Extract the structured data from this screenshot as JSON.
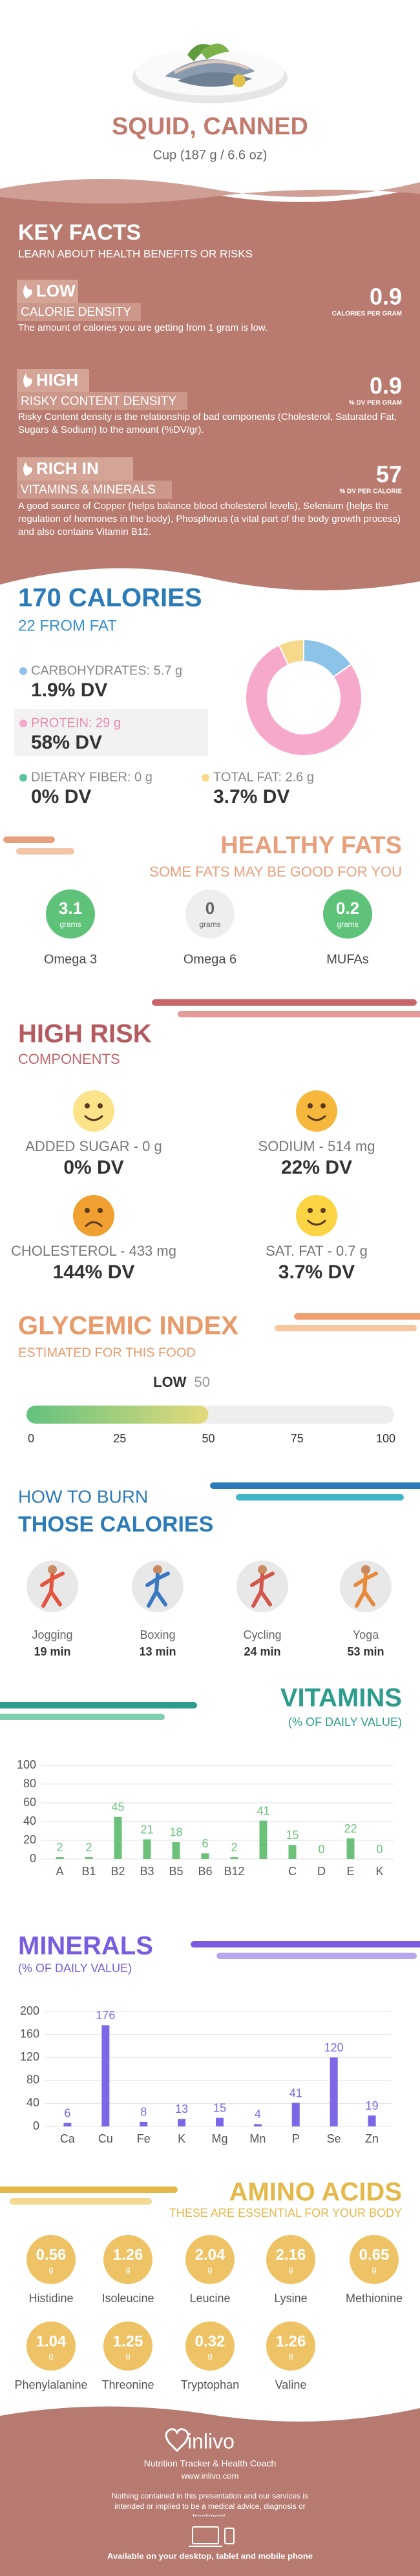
{
  "header": {
    "title": "SQUID, CANNED",
    "subtitle": "Cup (187 g / 6.6 oz)"
  },
  "key_facts": {
    "title": "KEY FACTS",
    "subtitle": "LEARN ABOUT HEALTH BENEFITS OR RISKS",
    "items": [
      {
        "level": "LOW",
        "name": "CALORIE DENSITY",
        "value": 0.9,
        "unit": "CALORIES PER GRAM",
        "description": "The amount of calories you are getting from 1 gram is low."
      },
      {
        "level": "HIGH",
        "name": "RISKY CONTENT DENSITY",
        "value": 0.9,
        "unit": "% DV PER GRAM",
        "description": "Risky Content density is the relationship of bad components (Cholesterol, Saturated Fat, Sugars & Sodium) to the amount (%DV/gr)."
      },
      {
        "level": "RICH  IN",
        "name": "VITAMINS & MINERALS",
        "value": 57,
        "unit": "% DV PER CALORIE",
        "description": "A good source of Copper (helps balance blood cholesterol levels), Selenium (helps the regulation of hormones in the body), Phosphorus (a vital part of the body growth process) and also contains Vitamin B12."
      }
    ]
  },
  "calories": {
    "title": "170 CALORIES",
    "subtitle": "22 FROM FAT",
    "nutrients": [
      {
        "label": "CARBOHYDRATES: 5.7 g",
        "value": 5.7,
        "dv": "1.9% DV",
        "color": "#8cc3e8"
      },
      {
        "label": "PROTEIN: 29 g",
        "value": 29,
        "dv": "58% DV",
        "color": "#f7a9cb"
      },
      {
        "label": "DIETARY FIBER: 0 g",
        "value": 0,
        "dv": "0% DV",
        "color": "#5cc49a"
      },
      {
        "label": "TOTAL FAT: 2.6 g",
        "value": 2.6,
        "dv": "3.7% DV",
        "color": "#f7d98b"
      }
    ]
  },
  "healthy_fats": {
    "title": "HEALTHY FATS",
    "subtitle": "SOME FATS MAY BE GOOD FOR YOU",
    "unit": "grams",
    "items": [
      {
        "name": "Omega 3",
        "value": 3.1,
        "color": "#5ec279"
      },
      {
        "name": "Omega 6",
        "value": 0,
        "color": "#eeeeee"
      },
      {
        "name": "MUFAs",
        "value": 0.2,
        "color": "#5ec279"
      }
    ]
  },
  "high_risk": {
    "title": "HIGH RISK",
    "subtitle": "COMPONENTS",
    "items": [
      {
        "label": "ADDED SUGAR - 0 g",
        "dv": "0% DV",
        "mood": "happy",
        "color": "#fbe38a"
      },
      {
        "label": "SODIUM - 514 mg",
        "dv": "22% DV",
        "mood": "happy",
        "color": "#f6b73c"
      },
      {
        "label": "CHOLESTEROL - 433 mg",
        "dv": "144% DV",
        "mood": "sad",
        "color": "#f0a030"
      },
      {
        "label": "SAT. FAT - 0.7 g",
        "dv": "3.7% DV",
        "mood": "happy",
        "color": "#fbd443"
      }
    ]
  },
  "glycemic_index": {
    "title": "GLYCEMIC INDEX",
    "subtitle": "ESTIMATED FOR THIS FOOD",
    "level": "LOW",
    "value": 50,
    "range": [
      0,
      100
    ],
    "ticks": [
      0,
      25,
      50,
      75,
      100
    ]
  },
  "burn": {
    "title_1": "HOW TO BURN",
    "title_2": "THOSE CALORIES",
    "activities": [
      {
        "name": "Jogging",
        "time": "19 min"
      },
      {
        "name": "Boxing",
        "time": "13 min"
      },
      {
        "name": "Cycling",
        "time": "24 min"
      },
      {
        "name": "Yoga",
        "time": "53 min"
      }
    ]
  },
  "vitamins": {
    "title": "VITAMINS",
    "subtitle": "(% OF DAILY VALUE)",
    "chart": {
      "type": "bar",
      "categories": [
        "A",
        "B1",
        "B2",
        "B3",
        "B5",
        "B6",
        "B12",
        null,
        "C",
        "D",
        "E",
        "K"
      ],
      "values": [
        2,
        2,
        45,
        21,
        18,
        6,
        2,
        41,
        15,
        0,
        22,
        0
      ],
      "color": "#6cc17a",
      "ylim": [
        0,
        100
      ],
      "yticks": [
        0,
        20,
        40,
        60,
        80,
        100
      ],
      "grid": true
    }
  },
  "minerals": {
    "title": "MINERALS",
    "subtitle": "(% OF DAILY VALUE)",
    "chart": {
      "type": "bar",
      "categories": [
        "Ca",
        "Cu",
        "Fe",
        "K",
        "Mg",
        "Mn",
        "P",
        "Se",
        "Zn"
      ],
      "values": [
        6,
        176,
        8,
        13,
        15,
        4,
        41,
        120,
        19
      ],
      "color": "#7d67e6",
      "ylim": [
        0,
        200
      ],
      "yticks": [
        0,
        40,
        80,
        120,
        160,
        200
      ],
      "grid": true
    }
  },
  "amino_acids": {
    "title": "AMINO ACIDS",
    "subtitle": "THESE ARE ESSENTIAL FOR YOUR BODY",
    "unit": "g",
    "items": [
      {
        "name": "Histidine",
        "value": 0.56
      },
      {
        "name": "Isoleucine",
        "value": 1.26
      },
      {
        "name": "Leucine",
        "value": 2.04
      },
      {
        "name": "Lysine",
        "value": 2.16
      },
      {
        "name": "Methionine",
        "value": 0.65
      },
      {
        "name": "Phenylalanine",
        "value": 1.04
      },
      {
        "name": "Threonine",
        "value": 1.25
      },
      {
        "name": "Tryptophan",
        "value": 0.32
      },
      {
        "name": "Valine",
        "value": 1.26
      }
    ]
  },
  "footer": {
    "brand": "inlivo",
    "tagline": "Nutrition Tracker & Health Coach",
    "url": "www.inlivo.com",
    "disclaimer": "Nothing contained in this presentation and our services is intended or implied to be a medical advice, diagnosis or treatment.",
    "availability": "Available on your desktop, tablet and mobile phone"
  }
}
